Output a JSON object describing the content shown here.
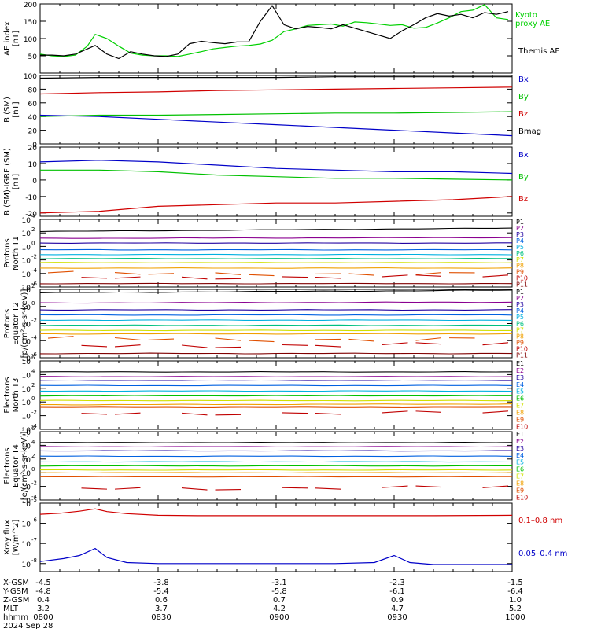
{
  "chart_data": [
    {
      "type": "line",
      "ylabel": "AE index\n[nT]",
      "ylim": [
        0,
        200
      ],
      "yticks": [
        "50",
        "100",
        "150",
        "200"
      ],
      "ytick_values": [
        50,
        100,
        150,
        200
      ],
      "series": [
        {
          "name": "Kyoto proxy AE",
          "color": "#00d000",
          "x": [
            0,
            3,
            6,
            9,
            12,
            14,
            17,
            20,
            23,
            26,
            29,
            32,
            35,
            38,
            41,
            44,
            47,
            50,
            53,
            56,
            59,
            62,
            65,
            68,
            71,
            74,
            77,
            80,
            83,
            86,
            89,
            92,
            95,
            98,
            101,
            104,
            107,
            110,
            113,
            116,
            119
          ],
          "values": [
            55,
            50,
            48,
            52,
            78,
            112,
            100,
            78,
            58,
            52,
            50,
            50,
            48,
            55,
            62,
            70,
            74,
            78,
            80,
            84,
            95,
            120,
            128,
            138,
            140,
            142,
            136,
            148,
            146,
            142,
            138,
            140,
            130,
            132,
            145,
            160,
            178,
            182,
            198,
            160,
            155
          ]
        },
        {
          "name": "Themis AE",
          "color": "#000000",
          "x": [
            0,
            3,
            6,
            9,
            12,
            14,
            17,
            20,
            23,
            26,
            29,
            32,
            35,
            38,
            41,
            44,
            47,
            50,
            53,
            56,
            59,
            62,
            65,
            68,
            71,
            74,
            77,
            80,
            83,
            86,
            89,
            92,
            95,
            98,
            101,
            104,
            107,
            110,
            113,
            116,
            119
          ],
          "values": [
            52,
            52,
            50,
            55,
            70,
            80,
            55,
            42,
            62,
            55,
            50,
            48,
            55,
            85,
            92,
            88,
            85,
            90,
            90,
            150,
            195,
            140,
            128,
            135,
            132,
            128,
            140,
            130,
            120,
            110,
            100,
            122,
            140,
            160,
            172,
            165,
            170,
            160,
            175,
            170,
            178
          ]
        }
      ]
    },
    {
      "type": "line",
      "ylabel": "B (SM)\n[nT]",
      "ylim": [
        0,
        100
      ],
      "yticks": [
        "0",
        "20",
        "40",
        "60",
        "80",
        "100"
      ],
      "ytick_values": [
        0,
        20,
        40,
        60,
        80,
        100
      ],
      "series": [
        {
          "name": "Bx",
          "color": "#0000c8",
          "x": [
            0,
            15,
            30,
            45,
            60,
            75,
            90,
            105,
            120
          ],
          "values": [
            42,
            40,
            36,
            32,
            28,
            24,
            20,
            16,
            12
          ]
        },
        {
          "name": "By",
          "color": "#00c000",
          "x": [
            0,
            15,
            30,
            45,
            60,
            75,
            90,
            105,
            120
          ],
          "values": [
            40,
            42,
            42,
            43,
            44,
            45,
            45,
            46,
            47
          ]
        },
        {
          "name": "Bz",
          "color": "#d00000",
          "x": [
            0,
            15,
            30,
            45,
            60,
            75,
            90,
            105,
            120
          ],
          "values": [
            73,
            75,
            76,
            78,
            79,
            80,
            81,
            82,
            83
          ]
        },
        {
          "name": "Bmag",
          "color": "#000000",
          "x": [
            0,
            15,
            30,
            45,
            60,
            75,
            90,
            105,
            120
          ],
          "values": [
            96,
            97,
            97,
            97,
            97,
            98,
            98,
            98,
            98
          ]
        }
      ]
    },
    {
      "type": "line",
      "ylabel": "B (SM)-IGRF (SM)\n[nT]",
      "ylim": [
        -22,
        20
      ],
      "yticks": [
        "-20",
        "-10",
        "0",
        "10",
        "20"
      ],
      "ytick_values": [
        -20,
        -10,
        0,
        10,
        20
      ],
      "series": [
        {
          "name": "Bx",
          "color": "#0000c8",
          "x": [
            0,
            15,
            30,
            45,
            60,
            75,
            90,
            105,
            120
          ],
          "values": [
            11,
            12,
            11,
            9,
            7,
            6,
            5,
            5,
            4
          ]
        },
        {
          "name": "By",
          "color": "#00c000",
          "x": [
            0,
            15,
            30,
            45,
            60,
            75,
            90,
            105,
            120
          ],
          "values": [
            6,
            6,
            5,
            3,
            2,
            1,
            1,
            0.5,
            0
          ]
        },
        {
          "name": "Bz",
          "color": "#d00000",
          "x": [
            0,
            15,
            30,
            45,
            60,
            75,
            90,
            105,
            120
          ],
          "values": [
            -20,
            -19,
            -16,
            -15,
            -14,
            -14,
            -13,
            -12,
            -10
          ]
        }
      ]
    },
    {
      "type": "line",
      "log": true,
      "ylabel": "Protons\nNorth T1",
      "ylim": [
        -6,
        4
      ],
      "yticks": [
        "10",
        "10",
        "10",
        "10",
        "10",
        "10"
      ],
      "tick_exps": [
        "4",
        "2",
        "0",
        "-2",
        "-4",
        "-6"
      ],
      "ytick_values": [
        4,
        2,
        0,
        -2,
        -4,
        -6
      ],
      "channels": [
        {
          "name": "P1",
          "color": "#000000",
          "level": 2.2,
          "trend": 0.5
        },
        {
          "name": "P2",
          "color": "#8a0090",
          "level": 1.2,
          "trend": 0.1
        },
        {
          "name": "P3",
          "color": "#2000a0",
          "level": 0.5,
          "trend": 0.0
        },
        {
          "name": "P4",
          "color": "#0060e0",
          "level": -0.5,
          "trend": 0.0
        },
        {
          "name": "P5",
          "color": "#00b0e0",
          "level": -1.2,
          "trend": 0.0
        },
        {
          "name": "P6",
          "color": "#00c080",
          "level": -1.8,
          "trend": 0.0
        },
        {
          "name": "P7",
          "color": "#d0e000",
          "level": -2.4,
          "trend": 0.0
        },
        {
          "name": "P8",
          "color": "#f0a000",
          "level": -3.2,
          "trend": 0.0
        },
        {
          "name": "P9",
          "color": "#e05000",
          "level": -4.0,
          "trend": 0.0,
          "noisy": true
        },
        {
          "name": "P10",
          "color": "#c00000",
          "level": -4.5,
          "trend": 0.0,
          "noisy": true
        },
        {
          "name": "P11",
          "color": "#800000",
          "level": -5.5,
          "trend": 0.0
        }
      ]
    },
    {
      "type": "line",
      "log": true,
      "ylabel": "Protons\nEquator T2\n[p/(cm²-s-sr-keV)]",
      "ylim": [
        -6,
        2
      ],
      "yticks": [
        "10",
        "10",
        "10",
        "10",
        "10"
      ],
      "tick_exps": [
        "2",
        "0",
        "-2",
        "-4",
        "-6"
      ],
      "ytick_values": [
        2,
        0,
        -2,
        -4,
        -6
      ],
      "channels": [
        {
          "name": "P1",
          "color": "#000000",
          "level": 1.6,
          "trend": 0.3
        },
        {
          "name": "P2",
          "color": "#8a0090",
          "level": 0.4,
          "trend": 0.1
        },
        {
          "name": "P3",
          "color": "#2000a0",
          "level": -0.4,
          "trend": 0.0
        },
        {
          "name": "P4",
          "color": "#0060e0",
          "level": -1.0,
          "trend": 0.0
        },
        {
          "name": "P5",
          "color": "#00b0e0",
          "level": -1.6,
          "trend": 0.0
        },
        {
          "name": "P6",
          "color": "#00c080",
          "level": -2.2,
          "trend": 0.0
        },
        {
          "name": "P7",
          "color": "#d0e000",
          "level": -2.8,
          "trend": 0.0
        },
        {
          "name": "P8",
          "color": "#f0a000",
          "level": -3.2,
          "trend": 0.0
        },
        {
          "name": "P9",
          "color": "#e05000",
          "level": -3.8,
          "trend": 0.0,
          "noisy": true
        },
        {
          "name": "P10",
          "color": "#c00000",
          "level": -4.5,
          "trend": 0.0,
          "noisy": true
        },
        {
          "name": "P11",
          "color": "#800000",
          "level": -5.5,
          "trend": 0.0
        }
      ]
    },
    {
      "type": "line",
      "log": true,
      "ylabel": "Electrons\nNorth T3",
      "ylim": [
        -4,
        6
      ],
      "yticks": [
        "10",
        "10",
        "10",
        "10",
        "10",
        "10"
      ],
      "tick_exps": [
        "6",
        "4",
        "2",
        "0",
        "-2",
        "-4"
      ],
      "ytick_values": [
        6,
        4,
        2,
        0,
        -2,
        -4
      ],
      "channels": [
        {
          "name": "E1",
          "color": "#000000",
          "level": 4.4,
          "trend": 0.0
        },
        {
          "name": "E2",
          "color": "#8a0090",
          "level": 3.7,
          "trend": 0.0
        },
        {
          "name": "E3",
          "color": "#2000a0",
          "level": 3.1,
          "trend": 0.0
        },
        {
          "name": "E4",
          "color": "#0060e0",
          "level": 2.4,
          "trend": 0.0
        },
        {
          "name": "E5",
          "color": "#00b0e0",
          "level": 1.6,
          "trend": 0.0
        },
        {
          "name": "E6",
          "color": "#00c000",
          "level": 0.9,
          "trend": 0.0
        },
        {
          "name": "E7",
          "color": "#d0e000",
          "level": 0.2,
          "trend": 0.0
        },
        {
          "name": "E8",
          "color": "#f0a000",
          "level": -0.4,
          "trend": 0.1
        },
        {
          "name": "E9",
          "color": "#e05000",
          "level": -0.8,
          "trend": 0.0
        },
        {
          "name": "E10",
          "color": "#c00000",
          "level": -1.6,
          "trend": 0.2,
          "noisy": true
        }
      ]
    },
    {
      "type": "line",
      "log": true,
      "ylabel": "Electrons\nEquator T4\n[e/(cm²-s-sr-keV)]",
      "ylim": [
        -4,
        6
      ],
      "yticks": [
        "10",
        "10",
        "10",
        "10",
        "10",
        "10"
      ],
      "tick_exps": [
        "6",
        "4",
        "2",
        "0",
        "-2",
        "-4"
      ],
      "ytick_values": [
        6,
        4,
        2,
        0,
        -2,
        -4
      ],
      "channels": [
        {
          "name": "E1",
          "color": "#000000",
          "level": 4.4,
          "trend": 0.0
        },
        {
          "name": "E2",
          "color": "#8a0090",
          "level": 3.8,
          "trend": 0.0
        },
        {
          "name": "E3",
          "color": "#2000a0",
          "level": 3.2,
          "trend": 0.0
        },
        {
          "name": "E4",
          "color": "#0060e0",
          "level": 2.4,
          "trend": 0.0
        },
        {
          "name": "E5",
          "color": "#00b0e0",
          "level": 1.6,
          "trend": 0.0
        },
        {
          "name": "E6",
          "color": "#00c000",
          "level": 1.0,
          "trend": 0.0
        },
        {
          "name": "E7",
          "color": "#d0e000",
          "level": 0.4,
          "trend": 0.0
        },
        {
          "name": "E8",
          "color": "#f0a000",
          "level": 0.0,
          "trend": 0.0
        },
        {
          "name": "E9",
          "color": "#e05000",
          "level": -0.6,
          "trend": 0.0
        },
        {
          "name": "E10",
          "color": "#c00000",
          "level": -2.2,
          "trend": 0.0,
          "noisy": true
        }
      ]
    },
    {
      "type": "line",
      "log": true,
      "ylabel": "Xray flux\n[W/m^2]",
      "ylim": [
        -8.4,
        -5
      ],
      "yticks": [
        "10",
        "10",
        "10",
        "10"
      ],
      "tick_exps": [
        "-5",
        "-6",
        "-7",
        "-8"
      ],
      "ytick_values": [
        -5,
        -6,
        -7,
        -8
      ],
      "series": [
        {
          "name": "0.1–0.8 nm",
          "color": "#d00000",
          "x": [
            0,
            5,
            10,
            14,
            17,
            22,
            30,
            40,
            60,
            80,
            100,
            120
          ],
          "values": [
            -5.55,
            -5.5,
            -5.4,
            -5.28,
            -5.42,
            -5.52,
            -5.6,
            -5.62,
            -5.62,
            -5.62,
            -5.62,
            -5.6
          ]
        },
        {
          "name": "0.05–0.4 nm",
          "color": "#0000c8",
          "x": [
            0,
            6,
            10,
            14,
            17,
            22,
            30,
            40,
            60,
            75,
            85,
            90,
            94,
            100,
            110,
            120
          ],
          "values": [
            -7.9,
            -7.75,
            -7.6,
            -7.25,
            -7.7,
            -7.95,
            -8.0,
            -8.0,
            -8.0,
            -8.0,
            -7.95,
            -7.6,
            -7.95,
            -8.05,
            -8.05,
            -8.05
          ]
        }
      ]
    }
  ],
  "legends": {
    "ae": [
      "Kyoto\nproxy AE",
      "Themis AE"
    ],
    "bsm": [
      "Bx",
      "By",
      "Bz",
      "Bmag"
    ],
    "bdiff": [
      "Bx",
      "By",
      "Bz"
    ],
    "xray": [
      "0.1–0.8 nm",
      "0.05–0.4 nm"
    ]
  },
  "footer": {
    "rows": [
      {
        "label": "X-GSM",
        "values": [
          "-4.5",
          "-3.8",
          "-3.1",
          "-2.3",
          "-1.5"
        ]
      },
      {
        "label": "Y-GSM",
        "values": [
          "-4.8",
          "-5.4",
          "-5.8",
          "-6.1",
          "-6.4"
        ]
      },
      {
        "label": "Z-GSM",
        "values": [
          "0.4",
          "0.6",
          "0.7",
          "0.9",
          "1.0"
        ]
      },
      {
        "label": "MLT",
        "values": [
          "3.2",
          "3.7",
          "4.2",
          "4.7",
          "5.2"
        ]
      },
      {
        "label": "hhmm",
        "values": [
          "0800",
          "0830",
          "0900",
          "0930",
          "1000"
        ]
      }
    ],
    "date": "2024 Sep 28"
  }
}
